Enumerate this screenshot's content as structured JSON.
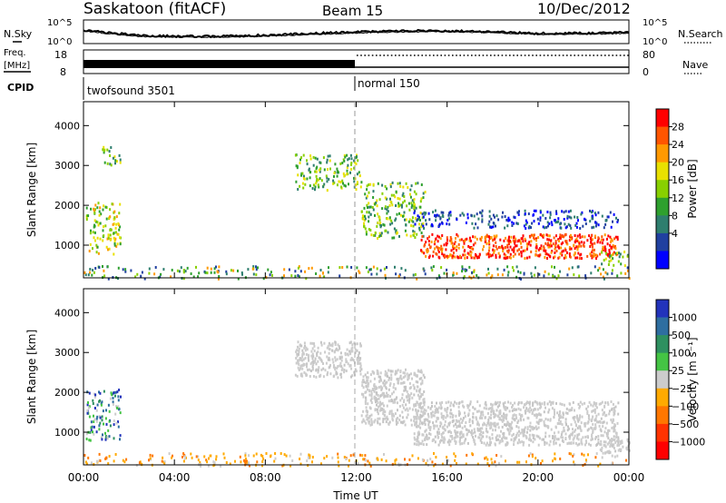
{
  "header": {
    "station": "Saskatoon (fitACF)",
    "beam": "Beam 15",
    "date": "10/Dec/2012"
  },
  "noise_panel": {
    "left_label": "N.Sky",
    "right_label": "N.Search",
    "left_ticks": [
      "10^5",
      "10^0"
    ],
    "right_ticks": [
      "10^5",
      "10^0"
    ]
  },
  "freq_panel": {
    "left_label_line1": "Freq.",
    "left_label_line2": "[MHz]",
    "right_label": "Nave",
    "left_ticks": [
      "18",
      "8"
    ],
    "right_ticks": [
      "80",
      "0"
    ]
  },
  "cpid_panel": {
    "label": "CPID",
    "segments": [
      {
        "name": "twofsound 3501",
        "start_hour": 0,
        "end_hour": 12
      },
      {
        "name": "normal 150",
        "start_hour": 12,
        "end_hour": 24
      }
    ]
  },
  "power_colorbar": {
    "label": "Power [dB]",
    "ticks": [
      "28",
      "24",
      "20",
      "16",
      "12",
      "8",
      "4"
    ],
    "colors": [
      "#ff0000",
      "#ff5500",
      "#ff9900",
      "#e8e000",
      "#88d000",
      "#2ea02e",
      "#2e7e6e",
      "#2040a0",
      "#0000ff"
    ]
  },
  "velocity_colorbar": {
    "label": "Velocity [m s⁻¹]",
    "ticks": [
      "1000",
      "500",
      "100",
      "25",
      "−25",
      "−100",
      "−500",
      "−1000"
    ],
    "colors": [
      "#2233bb",
      "#2e6ea0",
      "#2e9060",
      "#44c444",
      "#cccccc",
      "#ffaa00",
      "#ff7700",
      "#ff3300",
      "#ff0000"
    ]
  },
  "chart_data": [
    {
      "type": "heatmap",
      "panel": "power",
      "ylabel": "Slant Range [km]",
      "ylim": [
        180,
        4600
      ],
      "xlim": [
        0,
        24
      ],
      "y_ticks": [
        1000,
        2000,
        3000,
        4000
      ],
      "x_tick_labels": [
        "00:00",
        "04:00",
        "08:00",
        "12:00",
        "16:00",
        "20:00",
        "00:00"
      ],
      "x_tick_hours": [
        0,
        4,
        8,
        12,
        16,
        20,
        24
      ],
      "scatter_regions": [
        {
          "t0": 0.1,
          "t1": 1.6,
          "r0": 800,
          "r1": 2100,
          "level": "medium-high"
        },
        {
          "t0": 0.8,
          "t1": 1.6,
          "r0": 3000,
          "r1": 3500,
          "level": "medium"
        },
        {
          "t0": 9.3,
          "t1": 12.2,
          "r0": 2400,
          "r1": 3300,
          "level": "medium"
        },
        {
          "t0": 12.2,
          "t1": 15.0,
          "r0": 1200,
          "r1": 2600,
          "level": "medium"
        },
        {
          "t0": 14.5,
          "t1": 23.5,
          "r0": 1450,
          "r1": 1900,
          "level": "low"
        },
        {
          "t0": 14.8,
          "t1": 23.5,
          "r0": 700,
          "r1": 1300,
          "level": "high"
        },
        {
          "t0": 22.7,
          "t1": 24.0,
          "r0": 500,
          "r1": 900,
          "level": "medium"
        },
        {
          "t0": 0.0,
          "t1": 24.0,
          "r0": 180,
          "r1": 500,
          "level": "ground"
        }
      ]
    },
    {
      "type": "heatmap",
      "panel": "velocity",
      "ylabel": "Slant Range [km]",
      "xlabel": "Time UT",
      "ylim": [
        180,
        4600
      ],
      "xlim": [
        0,
        24
      ],
      "y_ticks": [
        1000,
        2000,
        3000,
        4000
      ],
      "x_tick_labels": [
        "00:00",
        "04:00",
        "08:00",
        "12:00",
        "16:00",
        "20:00",
        "00:00"
      ],
      "x_tick_hours": [
        0,
        4,
        8,
        12,
        16,
        20,
        24
      ],
      "scatter_regions": [
        {
          "t0": 0.1,
          "t1": 1.6,
          "r0": 800,
          "r1": 2100,
          "level": "mixed"
        },
        {
          "t0": 9.3,
          "t1": 12.2,
          "r0": 2400,
          "r1": 3300,
          "level": "near-zero"
        },
        {
          "t0": 12.2,
          "t1": 15.0,
          "r0": 1200,
          "r1": 2600,
          "level": "near-zero"
        },
        {
          "t0": 14.5,
          "t1": 23.5,
          "r0": 700,
          "r1": 1800,
          "level": "near-zero"
        },
        {
          "t0": 22.7,
          "t1": 24.0,
          "r0": 500,
          "r1": 900,
          "level": "near-zero"
        },
        {
          "t0": 0.0,
          "t1": 24.0,
          "r0": 180,
          "r1": 500,
          "level": "ground"
        }
      ]
    }
  ]
}
